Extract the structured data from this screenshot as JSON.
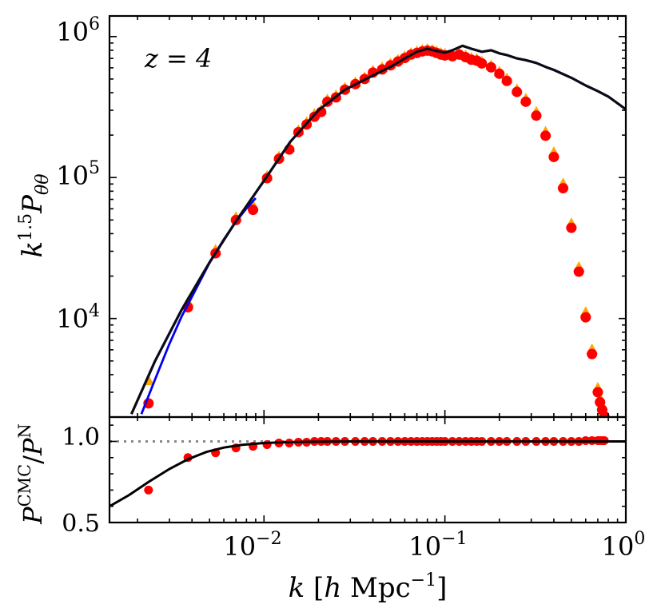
{
  "figure": {
    "redshift_label": "z = 4"
  },
  "chart_data": [
    {
      "type": "line",
      "panel": "top",
      "annotation": "z = 4",
      "ylabel": "k^1.5 P_θθ",
      "xlabel": "",
      "xscale": "log",
      "yscale": "log",
      "xlim": [
        0.0014,
        1.0
      ],
      "ylim": [
        2000,
        1400000
      ],
      "ytick_labels": [
        "10^4",
        "10^5",
        "10^6"
      ],
      "xtick_labels": [],
      "grid": false,
      "legend": "none",
      "colors": {
        "black_line": "#0a0a18",
        "blue_line": "#0000ee",
        "red_points": "#ff0000",
        "orange_triangles": "#ffa500"
      },
      "series": [
        {
          "style": "line-black",
          "x": [
            0.00185,
            0.0025,
            0.0035,
            0.005,
            0.007,
            0.01,
            0.014,
            0.02,
            0.028,
            0.04,
            0.05,
            0.06,
            0.07,
            0.08,
            0.09,
            0.1,
            0.11,
            0.125,
            0.14,
            0.16,
            0.18,
            0.2,
            0.22,
            0.25,
            0.28,
            0.32,
            0.36,
            0.4,
            0.5,
            0.6,
            0.7,
            0.8,
            1.0
          ],
          "y": [
            2100,
            5000,
            11500,
            25000,
            49000,
            95000,
            180000,
            300000,
            420000,
            530000,
            610000,
            700000,
            780000,
            820000,
            790000,
            770000,
            800000,
            860000,
            820000,
            780000,
            800000,
            760000,
            740000,
            700000,
            680000,
            650000,
            610000,
            580000,
            510000,
            450000,
            410000,
            375000,
            305000
          ]
        },
        {
          "style": "line-blue",
          "x": [
            0.0021,
            0.0025,
            0.003,
            0.0035,
            0.004,
            0.005,
            0.006,
            0.007,
            0.008,
            0.009
          ],
          "y": [
            2100,
            3700,
            6600,
            10300,
            14300,
            24800,
            36500,
            48700,
            60400,
            71500
          ]
        },
        {
          "style": "orange-triangles",
          "x": [
            0.0023,
            0.0038,
            0.0054,
            0.007,
            0.0087,
            0.0104,
            0.0121,
            0.0138,
            0.0155,
            0.0172,
            0.019,
            0.0207,
            0.0224,
            0.025,
            0.028,
            0.032,
            0.036,
            0.04,
            0.045,
            0.05,
            0.055,
            0.06,
            0.065,
            0.07,
            0.075,
            0.08,
            0.085,
            0.09,
            0.095,
            0.1,
            0.11,
            0.12,
            0.13,
            0.14,
            0.15,
            0.16,
            0.18,
            0.2,
            0.22,
            0.25,
            0.28,
            0.32,
            0.36,
            0.4,
            0.45,
            0.5,
            0.55,
            0.6,
            0.65,
            0.7,
            0.72,
            0.74,
            0.76
          ],
          "y": [
            3600,
            13000,
            30500,
            52000,
            63000,
            102000,
            140000,
            163000,
            215000,
            245000,
            280000,
            300000,
            355000,
            380000,
            430000,
            470000,
            510000,
            570000,
            600000,
            640000,
            680000,
            720000,
            760000,
            780000,
            800000,
            810000,
            800000,
            780000,
            760000,
            750000,
            740000,
            760000,
            730000,
            700000,
            690000,
            660000,
            620000,
            560000,
            500000,
            420000,
            360000,
            290000,
            210000,
            150000,
            90000,
            47000,
            23000,
            11000,
            6000,
            3200,
            2700,
            2400,
            2150
          ]
        },
        {
          "style": "red-points",
          "x": [
            0.0023,
            0.0038,
            0.0054,
            0.007,
            0.0087,
            0.0104,
            0.0121,
            0.0138,
            0.0155,
            0.0172,
            0.019,
            0.0207,
            0.0224,
            0.025,
            0.028,
            0.032,
            0.036,
            0.04,
            0.045,
            0.05,
            0.055,
            0.06,
            0.065,
            0.07,
            0.075,
            0.08,
            0.085,
            0.09,
            0.095,
            0.1,
            0.11,
            0.12,
            0.13,
            0.14,
            0.15,
            0.16,
            0.18,
            0.2,
            0.22,
            0.25,
            0.28,
            0.32,
            0.36,
            0.4,
            0.45,
            0.5,
            0.55,
            0.6,
            0.65,
            0.7,
            0.72,
            0.74,
            0.76
          ],
          "y": [
            2500,
            12000,
            29000,
            50000,
            59000,
            99000,
            136000,
            158000,
            210000,
            238000,
            270000,
            292000,
            345000,
            370000,
            420000,
            460000,
            500000,
            555000,
            585000,
            625000,
            665000,
            705000,
            745000,
            765000,
            785000,
            795000,
            785000,
            765000,
            745000,
            735000,
            725000,
            745000,
            715000,
            685000,
            675000,
            645000,
            605000,
            545000,
            485000,
            405000,
            345000,
            275000,
            198000,
            140000,
            84000,
            44000,
            21500,
            10200,
            5600,
            3000,
            2550,
            2250,
            2030
          ]
        }
      ]
    },
    {
      "type": "line",
      "panel": "bottom",
      "ylabel": "P^CMC / P^N",
      "xlabel": "k [h Mpc^-1]",
      "xscale": "log",
      "yscale": "linear",
      "xlim": [
        0.0014,
        1.0
      ],
      "ylim": [
        0.5,
        1.15
      ],
      "ytick_labels": [
        "0.5",
        "1.0"
      ],
      "xtick_labels": [
        "10^-2",
        "10^-1",
        "10^0"
      ],
      "grid": false,
      "legend": "none",
      "reference_line_y": 1.0,
      "series": [
        {
          "style": "line-black",
          "x": [
            0.0014,
            0.0018,
            0.0023,
            0.003,
            0.0038,
            0.0048,
            0.006,
            0.0075,
            0.0095,
            0.012,
            0.016,
            0.022,
            0.03,
            0.045,
            0.07,
            0.1,
            0.2,
            0.4,
            0.7,
            1.0
          ],
          "y": [
            0.6,
            0.67,
            0.75,
            0.83,
            0.89,
            0.935,
            0.962,
            0.978,
            0.988,
            0.994,
            0.997,
            0.999,
            1.0,
            1.0,
            1.0,
            1.0,
            1.0,
            1.0,
            1.0,
            1.0
          ]
        },
        {
          "style": "red-points",
          "x": [
            0.0023,
            0.0038,
            0.0054,
            0.007,
            0.0087,
            0.0104,
            0.0121,
            0.0138,
            0.0155,
            0.0172,
            0.019,
            0.0207,
            0.0224,
            0.025,
            0.028,
            0.032,
            0.036,
            0.04,
            0.045,
            0.05,
            0.055,
            0.06,
            0.065,
            0.07,
            0.075,
            0.08,
            0.085,
            0.09,
            0.095,
            0.1,
            0.11,
            0.12,
            0.13,
            0.14,
            0.15,
            0.16,
            0.18,
            0.2,
            0.22,
            0.25,
            0.28,
            0.32,
            0.36,
            0.4,
            0.45,
            0.5,
            0.55,
            0.6,
            0.65,
            0.7,
            0.72,
            0.74,
            0.76
          ],
          "y": [
            0.7,
            0.9,
            0.93,
            0.96,
            0.97,
            0.98,
            0.99,
            0.99,
            0.995,
            0.995,
            1.0,
            1.0,
            1.0,
            1.0,
            1.0,
            1.0,
            1.0,
            1.0,
            1.0,
            1.0,
            1.0,
            1.0,
            1.0,
            1.0,
            1.0,
            1.0,
            1.0,
            1.0,
            1.0,
            1.0,
            1.0,
            1.0,
            1.0,
            1.0,
            1.0,
            1.0,
            1.0,
            1.0,
            1.0,
            1.0,
            1.0,
            1.0,
            1.0,
            1.0,
            1.0,
            1.0,
            1.0,
            1.005,
            1.005,
            1.005,
            1.005,
            1.005,
            1.005
          ]
        }
      ]
    }
  ]
}
